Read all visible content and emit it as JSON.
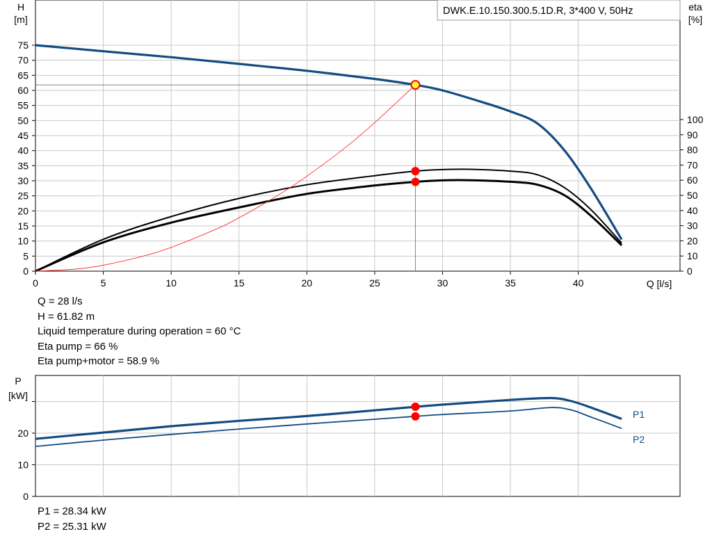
{
  "model_label": "DWK.E.10.150.300.5.1D.R, 3*400  V, 50Hz",
  "colors": {
    "head": "#124b82",
    "efficiency": "#000000",
    "system": "#ff3030",
    "duty_point": "#ff0000",
    "duty_point_head": "#ffff33",
    "grid": "#c8c8c8",
    "power": "#124b82"
  },
  "chart_data": [
    {
      "type": "line",
      "title": "",
      "xlabel": "Q [l/s]",
      "ylabel_left": "H [m]",
      "ylabel_right": "eta [%]",
      "xlim": [
        0,
        47.5
      ],
      "ylim_left": [
        0,
        80
      ],
      "ylim_right": [
        0,
        100
      ],
      "x_ticks": [
        0,
        5,
        10,
        15,
        20,
        25,
        30,
        35,
        40
      ],
      "y_ticks_left": [
        0,
        5,
        10,
        15,
        20,
        25,
        30,
        35,
        40,
        45,
        50,
        55,
        60,
        65,
        70,
        75
      ],
      "y_ticks_right": [
        0,
        10,
        20,
        30,
        40,
        50,
        60,
        70,
        80,
        90,
        100
      ],
      "grid": true,
      "series": [
        {
          "axis": "left",
          "role": "head",
          "x": [
            0,
            5,
            10,
            15,
            20,
            25,
            28,
            30,
            33,
            35,
            37,
            39,
            41,
            43.2
          ],
          "y": [
            75,
            73,
            71,
            68.8,
            66.5,
            63.8,
            61.82,
            60,
            56,
            53,
            49,
            40,
            27,
            10.5
          ]
        },
        {
          "axis": "right",
          "role": "eta-pump",
          "x": [
            0,
            5,
            10,
            15,
            20,
            25,
            28,
            30,
            32,
            35,
            37,
            39,
            41,
            43.2
          ],
          "y": [
            0,
            21,
            36,
            48,
            57,
            63,
            66,
            67,
            67.2,
            66,
            63.6,
            55,
            40,
            18.5
          ]
        },
        {
          "axis": "right",
          "role": "eta-pump-motor",
          "x": [
            0,
            5,
            10,
            15,
            20,
            25,
            28,
            30,
            32,
            35,
            37,
            39,
            41,
            43.2
          ],
          "y": [
            0,
            19,
            32,
            42,
            51,
            56.5,
            58.9,
            59.9,
            60,
            59,
            57,
            50,
            36,
            17
          ]
        },
        {
          "axis": "left",
          "role": "system-curve",
          "x": [
            0,
            3,
            5,
            8,
            10,
            13,
            15,
            18,
            20,
            23,
            25,
            28
          ],
          "y": [
            0,
            0.7,
            1.97,
            5.05,
            7.89,
            13.33,
            17.7,
            25.55,
            31.5,
            41.6,
            49.3,
            61.82
          ]
        }
      ],
      "duty_point": {
        "q": 28,
        "h": 61.82,
        "eta_pump": 66,
        "eta_pump_motor": 58.9
      }
    },
    {
      "type": "line",
      "title": "",
      "xlabel": "",
      "ylabel": "P [kW]",
      "xlim": [
        0,
        47.5
      ],
      "ylim": [
        0,
        31
      ],
      "y_ticks": [
        0,
        10,
        20
      ],
      "grid": true,
      "series": [
        {
          "name": "P1",
          "x": [
            0,
            5,
            10,
            15,
            20,
            25,
            28,
            30,
            35,
            38,
            39.5,
            41,
            43.2
          ],
          "y": [
            18.2,
            20.2,
            22.2,
            23.9,
            25.4,
            27.2,
            28.34,
            29,
            30.5,
            31.1,
            30.1,
            28,
            24.5
          ]
        },
        {
          "name": "P2",
          "x": [
            0,
            5,
            10,
            15,
            20,
            25,
            28,
            30,
            35,
            38,
            39.5,
            41,
            43.2
          ],
          "y": [
            15.8,
            17.8,
            19.6,
            21.3,
            22.9,
            24.4,
            25.31,
            25.9,
            27,
            28.1,
            27.3,
            25,
            21.5
          ]
        }
      ],
      "duty_point": {
        "q": 28,
        "p1": 28.34,
        "p2": 25.31
      }
    }
  ],
  "readout": {
    "lines": [
      "Q = 28 l/s",
      "H = 61.82 m",
      "Liquid temperature during operation = 60 °C",
      "Eta pump = 66 %",
      "Eta pump+motor = 58.9 %"
    ],
    "power_lines": [
      "P1 = 28.34 kW",
      "P2 = 25.31 kW"
    ]
  }
}
